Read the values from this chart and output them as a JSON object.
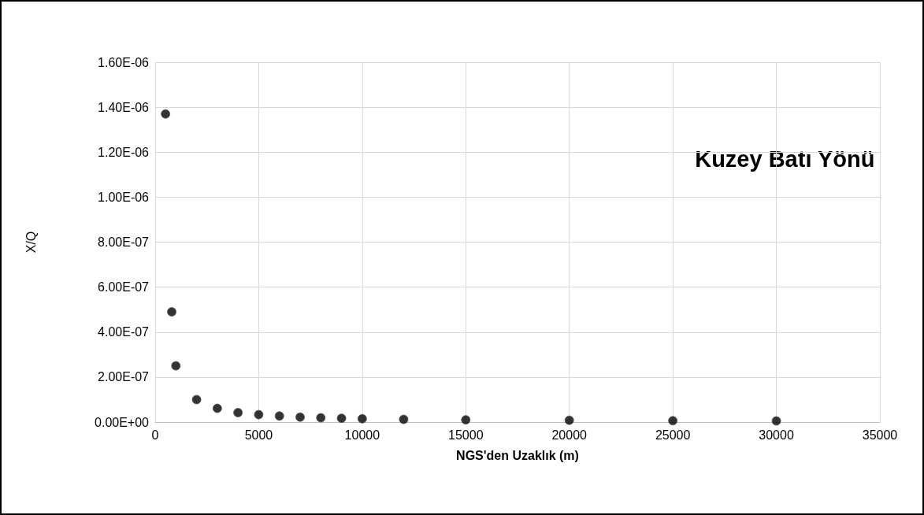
{
  "chart_data": {
    "type": "scatter",
    "xlabel": "NGS'den Uzaklık (m)",
    "ylabel": "X/Q",
    "annotations": [
      "Kuzey Batı Yönü"
    ],
    "x": [
      500,
      800,
      1000,
      2000,
      3000,
      4000,
      5000,
      6000,
      7000,
      8000,
      9000,
      10000,
      12000,
      15000,
      20000,
      25000,
      30000
    ],
    "series": [
      {
        "color": "#000000",
        "values": [
          1.37e-06,
          4.9e-07,
          2.5e-07,
          1e-07,
          6.1e-08,
          4.2e-08,
          3.3e-08,
          2.7e-08,
          2.2e-08,
          1.9e-08,
          1.7e-08,
          1.5e-08,
          1.2e-08,
          1e-08,
          8e-09,
          6e-09,
          5e-09
        ]
      }
    ],
    "xlim": [
      0,
      35000
    ],
    "xticks": [
      0,
      5000,
      10000,
      15000,
      20000,
      25000,
      30000,
      35000
    ],
    "ylim": [
      0,
      1.6e-06
    ],
    "yticks": [
      {
        "value": 0,
        "label": "0.00E+00"
      },
      {
        "value": 2e-07,
        "label": "2.00E-07"
      },
      {
        "value": 4e-07,
        "label": "4.00E-07"
      },
      {
        "value": 6e-07,
        "label": "6.00E-07"
      },
      {
        "value": 8e-07,
        "label": "8.00E-07"
      },
      {
        "value": 1e-06,
        "label": "1.00E-06"
      },
      {
        "value": 1.2e-06,
        "label": "1.20E-06"
      },
      {
        "value": 1.4e-06,
        "label": "1.40E-06"
      },
      {
        "value": 1.6e-06,
        "label": "1.60E-06"
      }
    ],
    "grid": true,
    "marker": "circle"
  }
}
